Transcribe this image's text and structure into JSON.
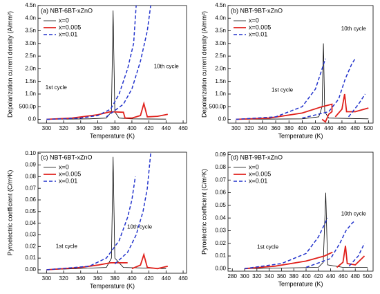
{
  "chart_data": [
    {
      "type": "line",
      "title": "(a) NBT-6BT-xZnO",
      "xlabel": "Temperature (K)",
      "ylabel": "Depolarization current density (A/mm²)",
      "xlim": [
        290,
        464
      ],
      "xticks": [
        300,
        320,
        340,
        360,
        380,
        400,
        420,
        440,
        460
      ],
      "ylim": [
        -1.5e-10,
        4.5e-09
      ],
      "yticks": [
        {
          "value": 0,
          "label": "0.0"
        },
        {
          "value": 5e-10,
          "label": "500.0p"
        },
        {
          "value": 1e-09,
          "label": "1.0n"
        },
        {
          "value": 1.5e-09,
          "label": "1.5n"
        },
        {
          "value": 2e-09,
          "label": "2.0n"
        },
        {
          "value": 2.5e-09,
          "label": "2.5n"
        },
        {
          "value": 3e-09,
          "label": "3.0n"
        },
        {
          "value": 3.5e-09,
          "label": "3.5n"
        },
        {
          "value": 4e-09,
          "label": "4.0n"
        },
        {
          "value": 4.5e-09,
          "label": "4.5n"
        }
      ],
      "legend": "upper left",
      "annotations": [
        "1st cycle",
        "10th cycle"
      ],
      "series": [
        {
          "name": "x=0",
          "color": "#000000",
          "linestyle": "solid",
          "linewidth": 0.8,
          "x": [
            300,
            350,
            370,
            376,
            378,
            380,
            385,
            400,
            440
          ],
          "values": [
            0,
            2e-11,
            5e-11,
            3e-10,
            4.3e-09,
            3e-10,
            5e-11,
            2e-11,
            1e-11
          ]
        },
        {
          "name": "x=0.005",
          "color": "#e0201b",
          "linestyle": "solid",
          "linewidth": 1.8,
          "x": [
            300,
            330,
            360,
            375,
            390,
            392,
            400,
            410,
            414,
            418,
            430,
            442
          ],
          "values": [
            0,
            5e-11,
            1.8e-10,
            3e-10,
            2.8e-10,
            5e-11,
            5e-11,
            1.5e-10,
            6.2e-10,
            1e-10,
            1.2e-10,
            2e-10
          ]
        },
        {
          "name": "x=0.01",
          "color": "#2233cc",
          "linestyle": "dashed",
          "linewidth": 1.5,
          "x": [
            300,
            340,
            360,
            375,
            385,
            395,
            402,
            405,
            null,
            370,
            390,
            400,
            410,
            418,
            422
          ],
          "values": [
            0,
            5e-11,
            1.5e-10,
            4e-10,
            1e-09,
            2e-09,
            3e-09,
            4.5e-09,
            null,
            1e-10,
            6e-10,
            1.2e-09,
            2.3e-09,
            3.5e-09,
            4.5e-09
          ]
        }
      ]
    },
    {
      "type": "line",
      "title": "(b) NBT-9BT-xZnO",
      "xlabel": "Temperature (K)",
      "ylabel": "Depolarization current density (A/mm²)",
      "xlim": [
        288,
        507
      ],
      "xticks": [
        300,
        320,
        340,
        360,
        380,
        400,
        420,
        440,
        460,
        480,
        500
      ],
      "ylim": [
        -1.5e-10,
        4.5e-09
      ],
      "yticks": [
        {
          "value": 0,
          "label": "0.0"
        },
        {
          "value": 5e-10,
          "label": "500.0p"
        },
        {
          "value": 1e-09,
          "label": "1.0n"
        },
        {
          "value": 1.5e-09,
          "label": "1.5n"
        },
        {
          "value": 2e-09,
          "label": "2.0n"
        },
        {
          "value": 2.5e-09,
          "label": "2.5n"
        },
        {
          "value": 3e-09,
          "label": "3.0n"
        },
        {
          "value": 3.5e-09,
          "label": "3.5n"
        },
        {
          "value": 4e-09,
          "label": "4.0n"
        },
        {
          "value": 4.5e-09,
          "label": "4.5n"
        }
      ],
      "legend": "upper left",
      "annotations": [
        "1st cycle",
        "10th cycle"
      ],
      "series": [
        {
          "name": "x=0",
          "color": "#000000",
          "linestyle": "solid",
          "linewidth": 0.8,
          "x": [
            300,
            400,
            425,
            430,
            432,
            434,
            440,
            500
          ],
          "values": [
            0,
            2e-11,
            1e-10,
            5e-10,
            3e-09,
            3e-10,
            5e-11,
            2e-11
          ]
        },
        {
          "name": "x=0.005",
          "color": "#e0201b",
          "linestyle": "solid",
          "linewidth": 1.8,
          "x": [
            300,
            350,
            400,
            430,
            445,
            445,
            440,
            435,
            430,
            null,
            450,
            460,
            464,
            467,
            480,
            500
          ],
          "values": [
            0,
            5e-11,
            2.5e-10,
            5e-10,
            6e-10,
            3e-10,
            2e-10,
            -1e-10,
            0,
            null,
            1e-10,
            4e-10,
            1e-09,
            3e-10,
            3e-10,
            4.5e-10
          ]
        },
        {
          "name": "x=0.01",
          "color": "#2233cc",
          "linestyle": "dashed",
          "linewidth": 1.5,
          "x": [
            300,
            360,
            400,
            420,
            430,
            435,
            null,
            400,
            440,
            455,
            465,
            475,
            480,
            null,
            470,
            485,
            495
          ],
          "values": [
            0,
            1e-10,
            5e-10,
            1.2e-09,
            2e-09,
            2.4e-09,
            null,
            5e-11,
            3e-10,
            8e-10,
            1.6e-09,
            2.2e-09,
            2.4e-09,
            null,
            1e-10,
            6e-10,
            1e-09
          ]
        }
      ]
    },
    {
      "type": "line",
      "title": "(c) NBT-6BT-xZnO",
      "xlabel": "Temperature (K)",
      "ylabel": "Pyroelectric coefficient (C/m²K)",
      "xlim": [
        290,
        464
      ],
      "xticks": [
        300,
        320,
        340,
        360,
        380,
        400,
        420,
        440,
        460
      ],
      "ylim": [
        -0.003,
        0.101
      ],
      "yticks": [
        {
          "value": 0,
          "label": "0.00"
        },
        {
          "value": 0.01,
          "label": "0.01"
        },
        {
          "value": 0.02,
          "label": "0.02"
        },
        {
          "value": 0.03,
          "label": "0.03"
        },
        {
          "value": 0.04,
          "label": "0.04"
        },
        {
          "value": 0.05,
          "label": "0.05"
        },
        {
          "value": 0.06,
          "label": "0.06"
        },
        {
          "value": 0.07,
          "label": "0.07"
        },
        {
          "value": 0.08,
          "label": "0.08"
        },
        {
          "value": 0.09,
          "label": "0.09"
        },
        {
          "value": 0.1,
          "label": "0.10"
        }
      ],
      "legend": "upper left",
      "annotations": [
        "1st cycle",
        "10th cycle"
      ],
      "series": [
        {
          "name": "x=0",
          "color": "#000000",
          "linestyle": "solid",
          "linewidth": 0.8,
          "x": [
            300,
            370,
            376,
            378,
            380,
            390,
            440
          ],
          "values": [
            0,
            0.002,
            0.01,
            0.097,
            0.01,
            0.002,
            0.001
          ]
        },
        {
          "name": "x=0.005",
          "color": "#e0201b",
          "linestyle": "solid",
          "linewidth": 1.8,
          "x": [
            300,
            340,
            360,
            375,
            395,
            null,
            400,
            410,
            414,
            418,
            430,
            442
          ],
          "values": [
            0,
            0.002,
            0.004,
            0.006,
            0.006,
            null,
            0.001,
            0.004,
            0.013,
            0.002,
            0.001,
            0.003
          ]
        },
        {
          "name": "x=0.01",
          "color": "#2233cc",
          "linestyle": "dashed",
          "linewidth": 1.5,
          "x": [
            300,
            350,
            370,
            385,
            395,
            400,
            404,
            null,
            380,
            395,
            405,
            413,
            418,
            422
          ],
          "values": [
            0,
            0.003,
            0.01,
            0.025,
            0.045,
            0.06,
            0.08,
            null,
            0.005,
            0.015,
            0.03,
            0.05,
            0.07,
            0.1
          ]
        }
      ]
    },
    {
      "type": "line",
      "title": "(d) NBT-9BT-xZnO",
      "xlabel": "Temperature (K)",
      "ylabel": "Pyroelectric coefficient (C/m²K)",
      "xlim": [
        273,
        509
      ],
      "xticks": [
        280,
        300,
        320,
        340,
        360,
        380,
        400,
        420,
        440,
        460,
        480,
        500
      ],
      "ylim": [
        -0.002,
        0.092
      ],
      "yticks": [
        {
          "value": 0,
          "label": "0.00"
        },
        {
          "value": 0.01,
          "label": "0.01"
        },
        {
          "value": 0.02,
          "label": "0.02"
        },
        {
          "value": 0.03,
          "label": "0.03"
        },
        {
          "value": 0.04,
          "label": "0.04"
        },
        {
          "value": 0.05,
          "label": "0.05"
        },
        {
          "value": 0.06,
          "label": "0.06"
        },
        {
          "value": 0.07,
          "label": "0.07"
        },
        {
          "value": 0.08,
          "label": "0.08"
        },
        {
          "value": 0.09,
          "label": "0.09"
        }
      ],
      "legend": "upper left",
      "annotations": [
        "1st cycle",
        "10th cycle"
      ],
      "series": [
        {
          "name": "x=0",
          "color": "#000000",
          "linestyle": "solid",
          "linewidth": 0.8,
          "x": [
            300,
            420,
            428,
            432,
            435,
            460,
            500
          ],
          "values": [
            0,
            0.001,
            0.005,
            0.06,
            0.003,
            0.001,
            0.001
          ]
        },
        {
          "name": "x=0.005",
          "color": "#e0201b",
          "linestyle": "solid",
          "linewidth": 1.8,
          "x": [
            300,
            350,
            400,
            430,
            443,
            null,
            450,
            460,
            464,
            467,
            480,
            495
          ],
          "values": [
            0,
            0.002,
            0.006,
            0.01,
            0.013,
            null,
            0.001,
            0.005,
            0.018,
            0.004,
            0.003,
            0.01
          ]
        },
        {
          "name": "x=0.01",
          "color": "#2233cc",
          "linestyle": "dashed",
          "linewidth": 1.5,
          "x": [
            300,
            360,
            400,
            420,
            435,
            null,
            400,
            440,
            455,
            465,
            475,
            480,
            null,
            470,
            485,
            495
          ],
          "values": [
            0,
            0.004,
            0.012,
            0.025,
            0.04,
            null,
            0.001,
            0.008,
            0.02,
            0.03,
            0.036,
            0.038,
            null,
            0.002,
            0.01,
            0.02
          ]
        }
      ]
    }
  ]
}
